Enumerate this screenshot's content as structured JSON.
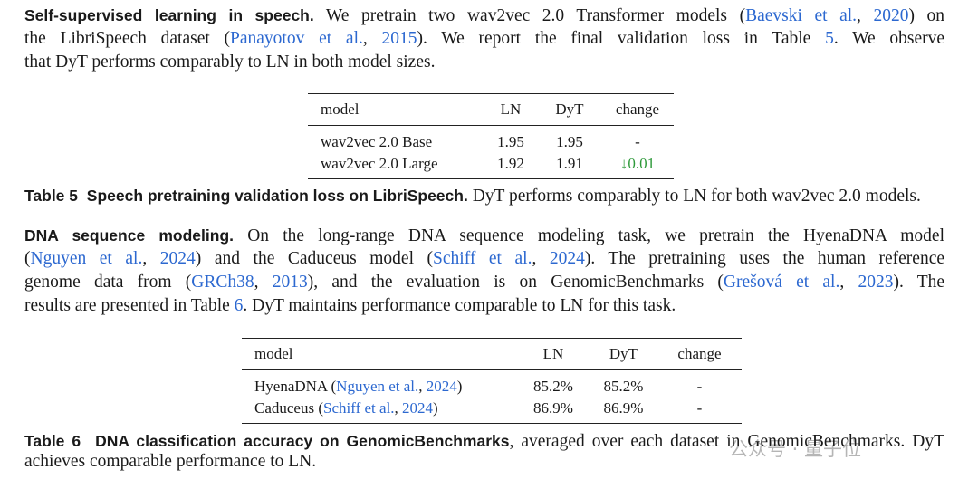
{
  "speech": {
    "heading": "Self-supervised learning in speech.",
    "lines": [
      [
        {
          "text": " We pretrain two wav2vec 2.0 Transformer models ("
        },
        {
          "link": "Baevski et al."
        },
        {
          "text": ", "
        },
        {
          "link": "2020"
        },
        {
          "text": ") on"
        }
      ],
      [
        {
          "text": "the LibriSpeech dataset ("
        },
        {
          "link": "Panayotov et al."
        },
        {
          "text": ", "
        },
        {
          "link": "2015"
        },
        {
          "text": "). We report the final validation loss in Table "
        },
        {
          "link": "5"
        },
        {
          "text": ". We observe"
        }
      ],
      [
        {
          "text": "that DyT performs comparably to LN in both model sizes."
        }
      ]
    ]
  },
  "table5": {
    "header": [
      "model",
      "LN",
      "DyT",
      "change"
    ],
    "rows": [
      [
        "wav2vec 2.0 Base",
        "1.95",
        "1.95",
        "-"
      ],
      [
        "wav2vec 2.0 Large",
        "1.92",
        "1.91",
        [
          {
            "green": "↓0.01"
          }
        ]
      ]
    ],
    "caption": {
      "label": "Table 5",
      "title": "Speech pretraining validation loss on LibriSpeech.",
      "lines": [
        " DyT performs comparably to LN for both wav2vec 2.0 models."
      ]
    }
  },
  "dna": {
    "heading": "DNA sequence modeling.",
    "lines": [
      [
        {
          "text": " On the long-range DNA sequence modeling task, we pretrain the HyenaDNA model"
        }
      ],
      [
        {
          "text": "("
        },
        {
          "link": "Nguyen et al."
        },
        {
          "text": ", "
        },
        {
          "link": "2024"
        },
        {
          "text": ") and the Caduceus model ("
        },
        {
          "link": "Schiff et al."
        },
        {
          "text": ", "
        },
        {
          "link": "2024"
        },
        {
          "text": "). The pretraining uses the human reference"
        }
      ],
      [
        {
          "text": "genome data from ("
        },
        {
          "link": "GRCh38"
        },
        {
          "text": ", "
        },
        {
          "link": "2013"
        },
        {
          "text": "), and the evaluation is on GenomicBenchmarks ("
        },
        {
          "link": "Grešová et al."
        },
        {
          "text": ", "
        },
        {
          "link": "2023"
        },
        {
          "text": "). The"
        }
      ],
      [
        {
          "text": "results are presented in Table "
        },
        {
          "link": "6"
        },
        {
          "text": ". DyT maintains performance comparable to LN for this task."
        }
      ]
    ]
  },
  "table6": {
    "header": [
      "model",
      "LN",
      "DyT",
      "change"
    ],
    "rows": [
      [
        [
          {
            "text": "HyenaDNA ("
          },
          {
            "link": "Nguyen et al."
          },
          {
            "text": ", "
          },
          {
            "link": "2024"
          },
          {
            "text": ")"
          }
        ],
        "85.2%",
        "85.2%",
        "-"
      ],
      [
        [
          {
            "text": "Caduceus ("
          },
          {
            "link": "Schiff et al."
          },
          {
            "text": ", "
          },
          {
            "link": "2024"
          },
          {
            "text": ")"
          }
        ],
        "86.9%",
        "86.9%",
        "-"
      ]
    ],
    "caption": {
      "label": "Table 6",
      "title": "DNA classification accuracy on GenomicBenchmarks",
      "lines": [
        ", averaged over each dataset in GenomicBenchmarks. DyT",
        "achieves comparable performance to LN."
      ]
    }
  },
  "watermark": "公众号 · 量子位"
}
